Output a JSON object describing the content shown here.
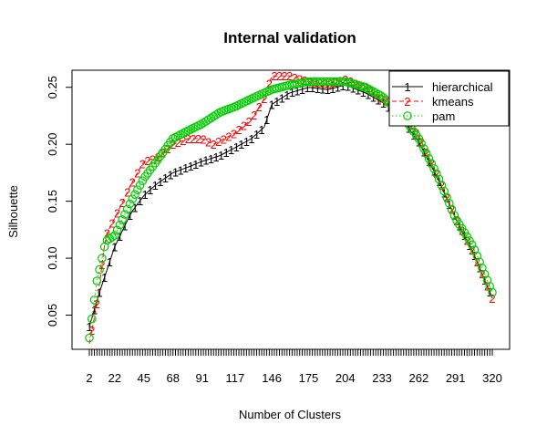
{
  "chart_data": {
    "type": "line",
    "title": "Internal validation",
    "xlabel": "Number of Clusters",
    "ylabel": "Silhouette",
    "xlim": [
      2,
      320
    ],
    "ylim": [
      0.02,
      0.265
    ],
    "x_tick_labels": [
      "2",
      "22",
      "45",
      "68",
      "91",
      "117",
      "146",
      "175",
      "204",
      "233",
      "262",
      "291",
      "320"
    ],
    "y_ticks": [
      0.05,
      0.1,
      0.15,
      0.2,
      0.25
    ],
    "y_tick_labels": [
      "0.05",
      "0.10",
      "0.15",
      "0.20",
      "0.25"
    ],
    "grid": false,
    "legend_position": "top-right",
    "series": [
      {
        "name": "hierarchical",
        "marker": "1",
        "line_style": "solid",
        "color": "#000000",
        "points": [
          [
            2,
            0.04
          ],
          [
            10,
            0.07
          ],
          [
            22,
            0.11
          ],
          [
            35,
            0.14
          ],
          [
            45,
            0.155
          ],
          [
            55,
            0.165
          ],
          [
            68,
            0.175
          ],
          [
            80,
            0.18
          ],
          [
            91,
            0.185
          ],
          [
            105,
            0.19
          ],
          [
            117,
            0.197
          ],
          [
            130,
            0.205
          ],
          [
            140,
            0.215
          ],
          [
            146,
            0.235
          ],
          [
            160,
            0.245
          ],
          [
            175,
            0.25
          ],
          [
            190,
            0.248
          ],
          [
            204,
            0.252
          ],
          [
            220,
            0.245
          ],
          [
            233,
            0.237
          ],
          [
            247,
            0.225
          ],
          [
            262,
            0.202
          ],
          [
            277,
            0.17
          ],
          [
            291,
            0.135
          ],
          [
            305,
            0.105
          ],
          [
            320,
            0.065
          ]
        ]
      },
      {
        "name": "kmeans",
        "marker": "2",
        "line_style": "dashed",
        "color": "#ff0000",
        "points": [
          [
            2,
            0.025
          ],
          [
            8,
            0.06
          ],
          [
            15,
            0.12
          ],
          [
            22,
            0.135
          ],
          [
            35,
            0.165
          ],
          [
            45,
            0.185
          ],
          [
            55,
            0.188
          ],
          [
            68,
            0.2
          ],
          [
            80,
            0.205
          ],
          [
            91,
            0.205
          ],
          [
            100,
            0.2
          ],
          [
            117,
            0.21
          ],
          [
            130,
            0.222
          ],
          [
            140,
            0.24
          ],
          [
            146,
            0.26
          ],
          [
            160,
            0.26
          ],
          [
            175,
            0.255
          ],
          [
            190,
            0.253
          ],
          [
            204,
            0.257
          ],
          [
            220,
            0.25
          ],
          [
            233,
            0.24
          ],
          [
            247,
            0.232
          ],
          [
            262,
            0.207
          ],
          [
            277,
            0.172
          ],
          [
            291,
            0.135
          ],
          [
            305,
            0.105
          ],
          [
            320,
            0.065
          ]
        ]
      },
      {
        "name": "pam",
        "marker": "3",
        "line_style": "dotted",
        "color": "#00cd00",
        "points": [
          [
            2,
            0.03
          ],
          [
            8,
            0.08
          ],
          [
            15,
            0.115
          ],
          [
            22,
            0.12
          ],
          [
            35,
            0.15
          ],
          [
            45,
            0.17
          ],
          [
            55,
            0.185
          ],
          [
            68,
            0.205
          ],
          [
            80,
            0.212
          ],
          [
            91,
            0.218
          ],
          [
            105,
            0.228
          ],
          [
            117,
            0.233
          ],
          [
            130,
            0.24
          ],
          [
            146,
            0.248
          ],
          [
            160,
            0.252
          ],
          [
            175,
            0.255
          ],
          [
            190,
            0.255
          ],
          [
            204,
            0.255
          ],
          [
            220,
            0.25
          ],
          [
            233,
            0.242
          ],
          [
            247,
            0.228
          ],
          [
            262,
            0.205
          ],
          [
            277,
            0.172
          ],
          [
            291,
            0.135
          ],
          [
            305,
            0.11
          ],
          [
            320,
            0.07
          ]
        ]
      }
    ]
  }
}
